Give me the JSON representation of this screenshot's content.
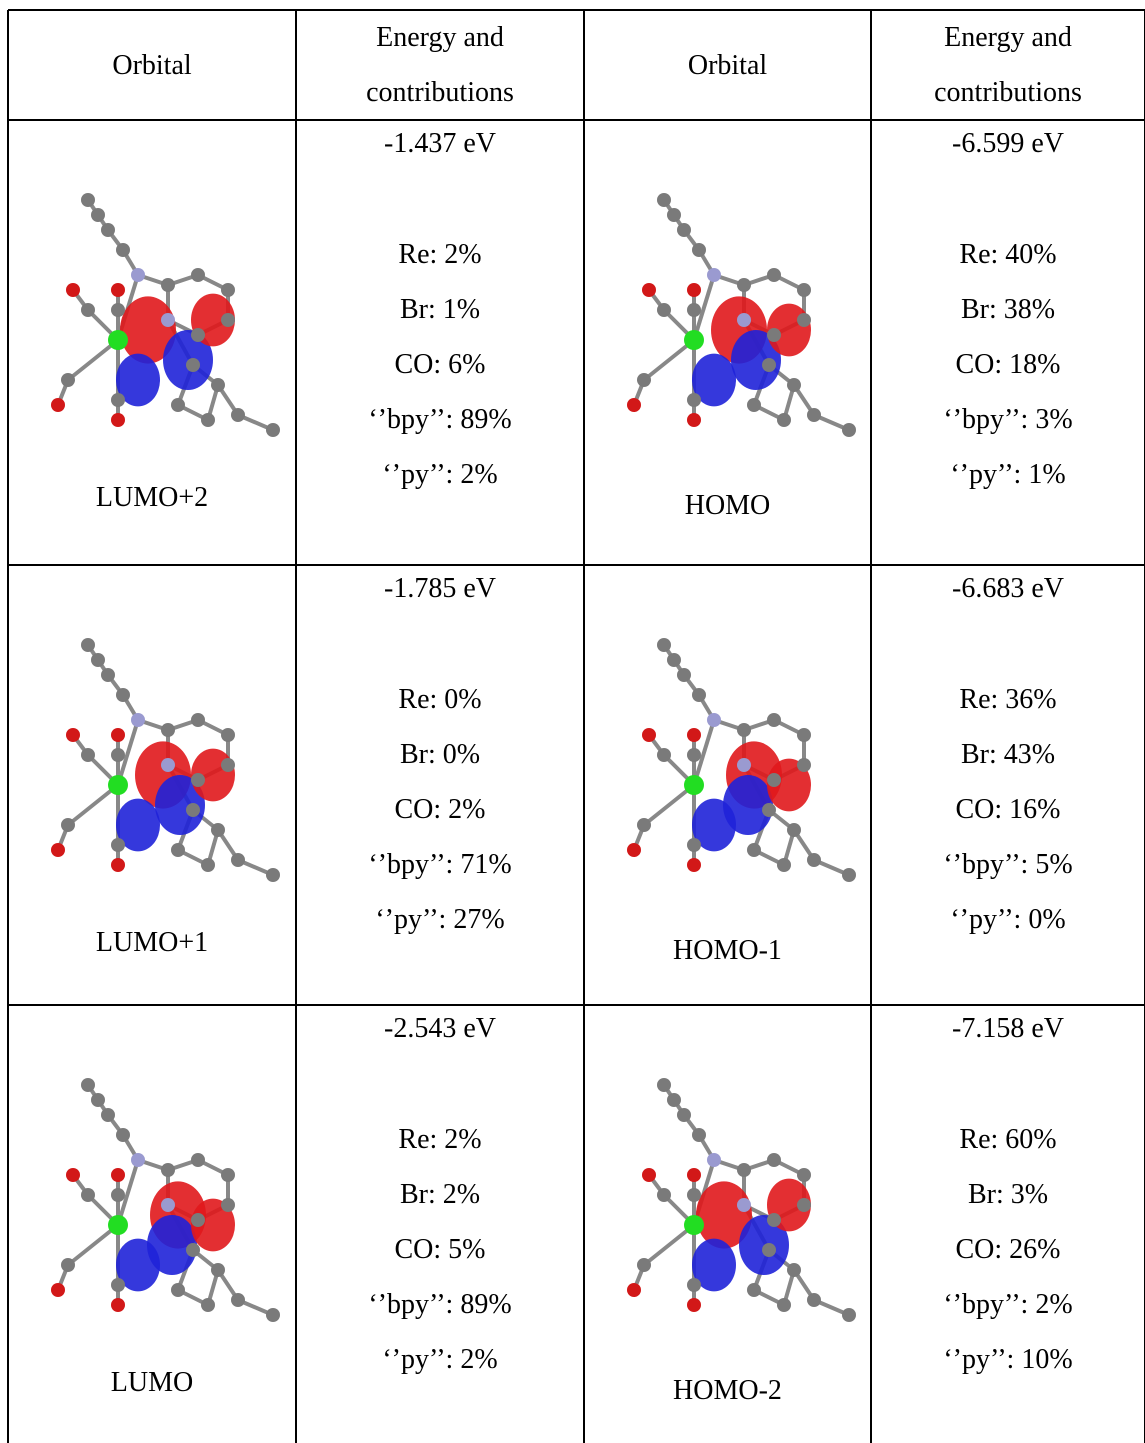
{
  "table": {
    "header": [
      "Orbital",
      "Energy and contributions",
      "Orbital",
      "Energy and contributions"
    ],
    "rows": [
      [
        {
          "orbital": "LUMO+2",
          "energy": "-1.437 eV",
          "contributions": [
            "Re: 2%",
            "Br: 1%",
            "CO: 6%",
            "‘’bpy’’: 89%",
            "‘’py’’: 2%"
          ]
        },
        {
          "orbital": "HOMO",
          "energy": "-6.599 eV",
          "contributions": [
            "Re: 40%",
            "Br: 38%",
            "CO: 18%",
            "‘’bpy’’: 3%",
            "‘’py’’: 1%"
          ]
        }
      ],
      [
        {
          "orbital": "LUMO+1",
          "energy": "-1.785 eV",
          "contributions": [
            "Re: 0%",
            "Br: 0%",
            "CO: 2%",
            "‘’bpy’’: 71%",
            "‘’py’’: 27%"
          ]
        },
        {
          "orbital": "HOMO-1",
          "energy": "-6.683 eV",
          "contributions": [
            "Re: 36%",
            "Br: 43%",
            "CO: 16%",
            "‘’bpy’’: 5%",
            "‘’py’’: 0%"
          ]
        }
      ],
      [
        {
          "orbital": "LUMO",
          "energy": "-2.543 eV",
          "contributions": [
            "Re: 2%",
            "Br: 2%",
            "CO: 5%",
            "‘’bpy’’: 89%",
            "‘’py’’: 2%"
          ]
        },
        {
          "orbital": "HOMO-2",
          "energy": "-7.158 eV",
          "contributions": [
            "Re: 60%",
            "Br: 3%",
            "CO: 26%",
            "‘’bpy’’: 2%",
            "‘’py’’: 10%"
          ]
        }
      ]
    ]
  }
}
